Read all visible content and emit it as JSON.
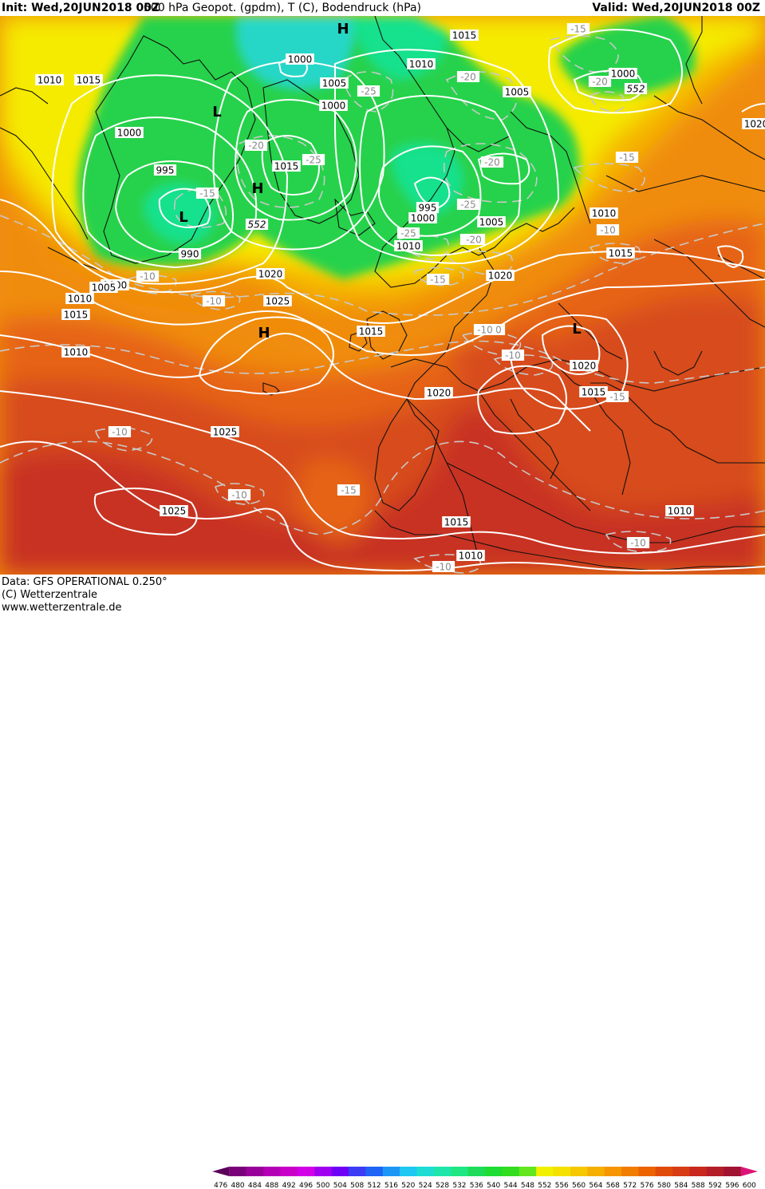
{
  "header": {
    "init": "Init: Wed,20JUN2018 00Z",
    "title": "500 hPa Geopot. (gpdm), T (C), Bodendruck (hPa)",
    "valid": "Valid: Wed,20JUN2018 00Z"
  },
  "footer": {
    "data_line": "Data: GFS OPERATIONAL 0.250°",
    "copyright": "(C) Wetterzentrale",
    "website": "www.wetterzentrale.de"
  },
  "legend": {
    "ticks": [
      "476",
      "480",
      "484",
      "488",
      "492",
      "496",
      "500",
      "504",
      "508",
      "512",
      "516",
      "520",
      "524",
      "528",
      "532",
      "536",
      "540",
      "544",
      "548",
      "552",
      "556",
      "560",
      "564",
      "568",
      "572",
      "576",
      "580",
      "584",
      "588",
      "592",
      "596",
      "600"
    ],
    "colors": [
      "#5a005a",
      "#7a007a",
      "#9a009a",
      "#b400b4",
      "#c800c8",
      "#d200e6",
      "#a000f0",
      "#6e00f5",
      "#3c3cf5",
      "#1e64f5",
      "#1e96f5",
      "#1ec8f0",
      "#1edcd2",
      "#1ee6aa",
      "#1ee682",
      "#1edc5a",
      "#1edc32",
      "#32dc1e",
      "#64e61e",
      "#f0f000",
      "#f5e100",
      "#f5c800",
      "#f5af00",
      "#f59600",
      "#f07d00",
      "#eb6400",
      "#e14b0a",
      "#d73c14",
      "#c8281e",
      "#b41e28",
      "#a01432",
      "#dc1478"
    ]
  },
  "map": {
    "colors": {
      "green_low": "#28d24b",
      "green_core": "#14e18c",
      "cyan_core": "#28d7c8",
      "yellow": "#f5eb00",
      "light_orange": "#f5b400",
      "orange": "#f08c0a",
      "dark_orange": "#e66414",
      "red_orange": "#d74b1e",
      "deep_red": "#c83223",
      "coast": "#111111",
      "isobar": "#ffffff",
      "isotherm": "#c8c8c8"
    },
    "pressure_centers": [
      {
        "label": "H"
      },
      {
        "label": "L"
      },
      {
        "label": "L"
      },
      {
        "label": "H"
      },
      {
        "label": "H"
      },
      {
        "label": "L"
      }
    ],
    "isobar_labels": [
      "1010",
      "1015",
      "1000",
      "1005",
      "1010",
      "1000",
      "995",
      "990",
      "1015",
      "1015",
      "1000",
      "995",
      "1000",
      "1010",
      "1005",
      "1010",
      "1020",
      "1000",
      "1005",
      "1010",
      "1015",
      "1020",
      "1025",
      "1015",
      "1020",
      "1015",
      "1020",
      "1025",
      "1025",
      "1015",
      "1010",
      "1010",
      "1005",
      "1000",
      "1015",
      "1010",
      "1020"
    ],
    "isotherm_labels": [
      "-15",
      "-25",
      "-20",
      "-25",
      "-20",
      "-15",
      "-15",
      "-20",
      "-25",
      "-20",
      "-15",
      "-25",
      "-20",
      "-10",
      "-10",
      "-15",
      "-10",
      "-10",
      "-10",
      "-10",
      "-15",
      "-10",
      "-10",
      "-10",
      "-10",
      "-20"
    ],
    "height_labels": [
      "552",
      "552"
    ]
  }
}
